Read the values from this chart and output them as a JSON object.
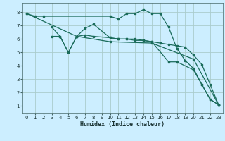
{
  "title": "",
  "xlabel": "Humidex (Indice chaleur)",
  "bg_color": "#cceeff",
  "grid_color": "#aacccc",
  "line_color": "#1a6b5a",
  "xlim": [
    -0.5,
    23.5
  ],
  "ylim": [
    0.5,
    8.7
  ],
  "xticks": [
    0,
    1,
    2,
    3,
    4,
    5,
    6,
    7,
    8,
    9,
    10,
    11,
    12,
    13,
    14,
    15,
    16,
    17,
    18,
    19,
    20,
    21,
    22,
    23
  ],
  "yticks": [
    1,
    2,
    3,
    4,
    5,
    6,
    7,
    8
  ],
  "lines": [
    {
      "x": [
        0,
        1,
        2,
        10,
        11,
        12,
        13,
        14,
        15,
        16,
        17,
        18,
        19,
        20,
        21,
        22,
        23
      ],
      "y": [
        7.9,
        7.7,
        7.7,
        7.7,
        7.5,
        7.9,
        7.9,
        8.2,
        7.9,
        7.9,
        6.9,
        5.3,
        4.4,
        3.8,
        2.6,
        1.5,
        1.1
      ]
    },
    {
      "x": [
        3,
        4,
        5,
        6,
        7,
        8,
        10,
        11,
        12,
        13,
        14,
        15,
        17,
        18,
        20,
        21,
        22,
        23
      ],
      "y": [
        6.9,
        6.2,
        5.0,
        6.2,
        6.8,
        7.1,
        6.1,
        6.0,
        6.0,
        6.0,
        5.9,
        5.8,
        4.3,
        4.3,
        3.7,
        2.6,
        1.5,
        1.1
      ]
    },
    {
      "x": [
        3,
        4,
        5,
        6,
        7,
        8,
        10,
        11,
        12,
        13,
        14,
        15,
        16,
        17,
        18,
        19,
        20,
        21,
        22,
        23
      ],
      "y": [
        6.2,
        6.2,
        5.0,
        6.2,
        6.3,
        6.2,
        6.1,
        6.0,
        6.0,
        5.9,
        5.9,
        5.8,
        5.7,
        5.6,
        5.5,
        5.4,
        4.8,
        4.1,
        2.6,
        1.1
      ]
    },
    {
      "x": [
        0,
        6,
        10,
        15,
        20,
        23
      ],
      "y": [
        7.9,
        6.2,
        5.8,
        5.7,
        4.5,
        1.1
      ]
    }
  ]
}
